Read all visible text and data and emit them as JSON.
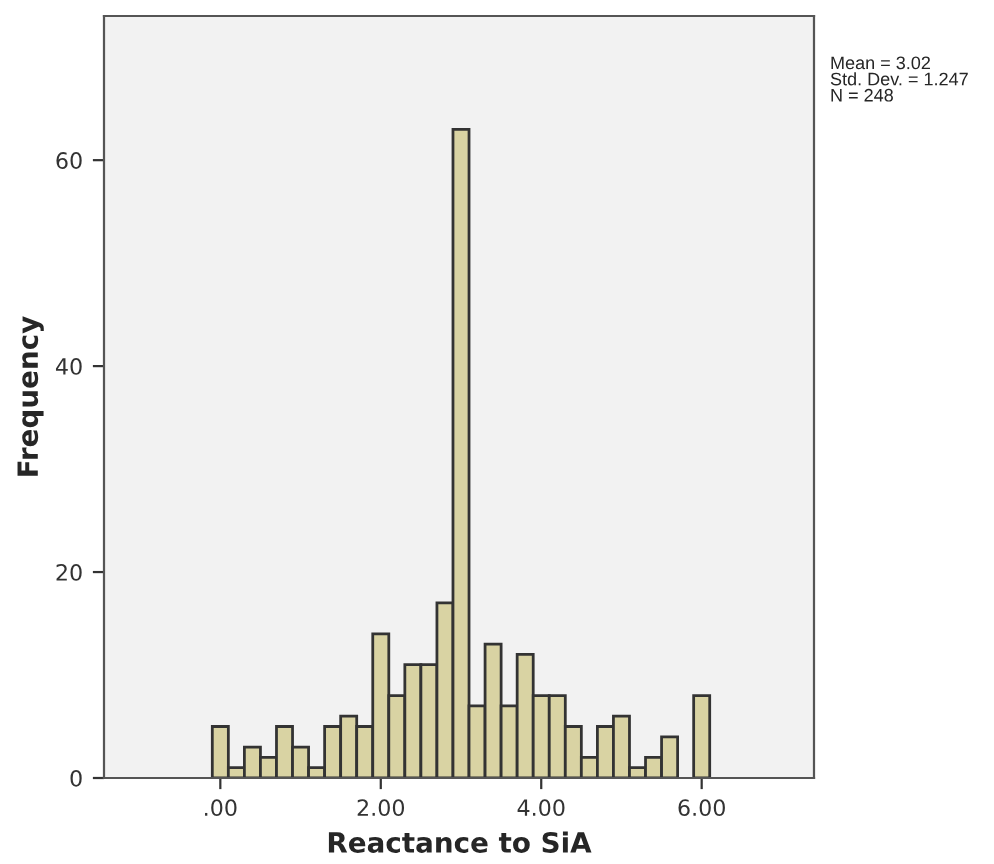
{
  "chart_data": {
    "type": "histogram",
    "xlabel": "Reactance to SiA",
    "ylabel": "Frequency",
    "bins": [
      -0.1,
      0.1,
      0.3,
      0.5,
      0.7,
      0.9,
      1.1,
      1.3,
      1.5,
      1.7,
      1.9,
      2.1,
      2.3,
      2.5,
      2.7,
      2.9,
      3.1,
      3.3,
      3.5,
      3.7,
      3.9,
      4.1,
      4.3,
      4.5,
      4.7,
      4.9,
      5.1,
      5.3,
      5.5,
      5.7,
      5.9,
      6.1
    ],
    "values": [
      5,
      1,
      3,
      2,
      5,
      3,
      1,
      5,
      6,
      5,
      14,
      8,
      11,
      11,
      17,
      63,
      7,
      13,
      7,
      12,
      8,
      8,
      5,
      2,
      5,
      6,
      1,
      2,
      4,
      0,
      8
    ],
    "color": "#d9d3a3",
    "xlim": [
      -1.45,
      7.4
    ],
    "ylim": [
      0,
      74
    ],
    "xticks": [
      {
        "value": 0,
        "label": ".00"
      },
      {
        "value": 2,
        "label": "2.00"
      },
      {
        "value": 4,
        "label": "4.00"
      },
      {
        "value": 6,
        "label": "6.00"
      }
    ],
    "yticks": [
      0,
      20,
      40,
      60
    ],
    "grid": false,
    "annotations": [
      "Mean = 3.02\nStd. Dev. = 1.247\nN = 248"
    ]
  }
}
